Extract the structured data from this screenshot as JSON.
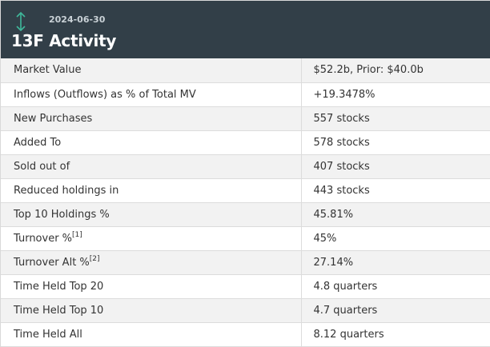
{
  "header": {
    "date": "2024-06-30",
    "title": "13F Activity",
    "icon": "up-down-arrow-icon",
    "bg_color": "#323f48",
    "icon_color": "#3fb89b"
  },
  "rows": [
    {
      "label": "Market Value",
      "note": "",
      "value": "$52.2b, Prior: $40.0b"
    },
    {
      "label": "Inflows (Outflows) as % of Total MV",
      "note": "",
      "value": "+19.3478%",
      "value_color": "#1f8a1f"
    },
    {
      "label": "New Purchases",
      "note": "",
      "value": "557 stocks"
    },
    {
      "label": "Added To",
      "note": "",
      "value": "578 stocks"
    },
    {
      "label": "Sold out of",
      "note": "",
      "value": "407 stocks"
    },
    {
      "label": "Reduced holdings in",
      "note": "",
      "value": "443 stocks"
    },
    {
      "label": "Top 10 Holdings %",
      "note": "",
      "value": "45.81%"
    },
    {
      "label": "Turnover %",
      "note": "[1]",
      "value": "45%"
    },
    {
      "label": "Turnover Alt %",
      "note": "[2]",
      "value": "27.14%"
    },
    {
      "label": "Time Held Top 20",
      "note": "",
      "value": "4.8 quarters"
    },
    {
      "label": "Time Held Top 10",
      "note": "",
      "value": "4.7 quarters"
    },
    {
      "label": "Time Held All",
      "note": "",
      "value": "8.12 quarters"
    }
  ]
}
